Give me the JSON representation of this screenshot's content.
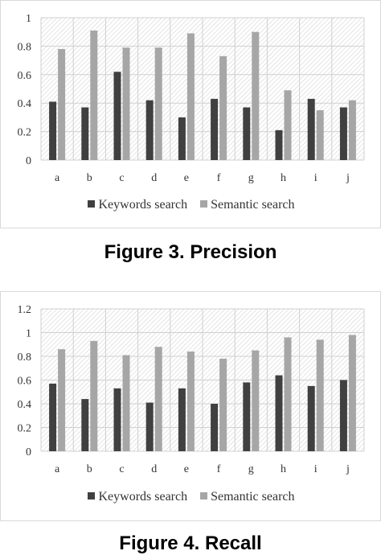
{
  "chart_data": [
    {
      "type": "bar",
      "title": "",
      "xlabel": "",
      "ylabel": "",
      "categories": [
        "a",
        "b",
        "c",
        "d",
        "e",
        "f",
        "g",
        "h",
        "i",
        "j"
      ],
      "series": [
        {
          "name": "Keywords search",
          "values": [
            0.41,
            0.37,
            0.62,
            0.42,
            0.3,
            0.43,
            0.37,
            0.21,
            0.43,
            0.37
          ]
        },
        {
          "name": "Semantic search",
          "values": [
            0.78,
            0.91,
            0.79,
            0.79,
            0.89,
            0.73,
            0.9,
            0.49,
            0.35,
            0.42
          ]
        }
      ],
      "ylim": [
        0,
        1
      ],
      "yticks": [
        "0",
        "0.2",
        "0.4",
        "0.6",
        "0.8",
        "1"
      ],
      "ytick_values": [
        0,
        0.2,
        0.4,
        0.6,
        0.8,
        1
      ],
      "grid": true,
      "legend": "bottom",
      "colors": [
        "#404040",
        "#a6a6a6"
      ]
    },
    {
      "type": "bar",
      "title": "",
      "xlabel": "",
      "ylabel": "",
      "categories": [
        "a",
        "b",
        "c",
        "d",
        "e",
        "f",
        "g",
        "h",
        "i",
        "j"
      ],
      "series": [
        {
          "name": "Keywords search",
          "values": [
            0.57,
            0.44,
            0.53,
            0.41,
            0.53,
            0.4,
            0.58,
            0.64,
            0.55,
            0.6
          ]
        },
        {
          "name": "Semantic search",
          "values": [
            0.86,
            0.93,
            0.81,
            0.88,
            0.84,
            0.78,
            0.85,
            0.96,
            0.94,
            0.98
          ]
        }
      ],
      "ylim": [
        0,
        1.2
      ],
      "yticks": [
        "0",
        "0.2",
        "0.4",
        "0.6",
        "0.8",
        "1",
        "1.2"
      ],
      "ytick_values": [
        0,
        0.2,
        0.4,
        0.6,
        0.8,
        1,
        1.2
      ],
      "grid": true,
      "legend": "bottom",
      "colors": [
        "#404040",
        "#a6a6a6"
      ]
    }
  ],
  "captions": {
    "figure3": "Figure 3. Precision",
    "figure4": "Figure 4. Recall"
  }
}
